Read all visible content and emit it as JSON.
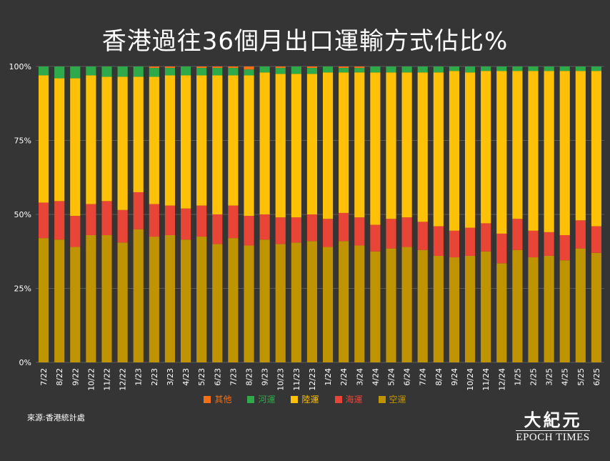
{
  "title": "香港過往36個月出口運輸方式佔比%",
  "source_note": "來源:香港統計處",
  "logo": {
    "cn": "大紀元",
    "en": "EPOCH TIMES"
  },
  "colors": {
    "其他": "#f46f16",
    "河運": "#2faa4a",
    "陸運": "#ffc107",
    "海運": "#e84536",
    "空運": "#c09300",
    "gridline": "#595959",
    "axis_text": "#ffffff"
  },
  "legend": [
    {
      "key": "其他",
      "label": "其他"
    },
    {
      "key": "河運",
      "label": "河運"
    },
    {
      "key": "陸運",
      "label": "陸運"
    },
    {
      "key": "海運",
      "label": "海運"
    },
    {
      "key": "空運",
      "label": "空運"
    }
  ],
  "chart_data": {
    "type": "bar",
    "stacked": true,
    "percent_stacked": true,
    "title": "香港過往36個月出口運輸方式佔比%",
    "xlabel": "",
    "ylabel": "",
    "ylim": [
      0,
      100
    ],
    "yticks": [
      "0%",
      "25%",
      "50%",
      "75%",
      "100%"
    ],
    "grid": true,
    "legend_position": "bottom",
    "categories": [
      "7/22",
      "8/22",
      "9/22",
      "10/22",
      "11/22",
      "12/22",
      "1/23",
      "2/23",
      "3/23",
      "4/23",
      "5/23",
      "6/23",
      "7/23",
      "8/23",
      "9/23",
      "10/23",
      "11/23",
      "12/23",
      "1/24",
      "2/24",
      "3/24",
      "4/24",
      "5/24",
      "6/24",
      "7/24",
      "8/24",
      "9/24",
      "10/24",
      "11/24",
      "12/24",
      "1/25",
      "2/25",
      "3/25",
      "4/25",
      "5/25",
      "6/25"
    ],
    "series": [
      {
        "name": "空運",
        "values": [
          42,
          41.5,
          39,
          43,
          43,
          40.5,
          45,
          42.5,
          43,
          41.5,
          42.5,
          40,
          42,
          39.5,
          41.5,
          40,
          40.5,
          41,
          39,
          41,
          39.5,
          37.5,
          38.5,
          39,
          38,
          36,
          35.5,
          36,
          37.5,
          33.5,
          38,
          35.5,
          36,
          34.5,
          38.5,
          37
        ]
      },
      {
        "name": "海運",
        "values": [
          12,
          13,
          10.5,
          10.5,
          11.5,
          11,
          12.5,
          11,
          10,
          10.5,
          10.5,
          10,
          11,
          10,
          8.5,
          9,
          8.5,
          9,
          9.5,
          9.5,
          9.5,
          9,
          10,
          10,
          9.5,
          10,
          9,
          9.5,
          9.5,
          10,
          10.5,
          9,
          8,
          8.5,
          9.5,
          9
        ]
      },
      {
        "name": "陸運",
        "values": [
          43,
          41.5,
          46.5,
          43.5,
          42,
          45,
          39,
          43,
          44,
          45,
          44,
          47,
          44,
          47.5,
          48,
          48.5,
          48.5,
          47.5,
          49.5,
          47.5,
          49,
          51.5,
          49.5,
          49,
          50.5,
          52,
          54,
          52.5,
          51.5,
          55,
          50,
          54,
          54.5,
          55.5,
          50.5,
          52.5
        ]
      },
      {
        "name": "河運",
        "values": [
          3,
          4,
          4,
          3,
          3.5,
          3.5,
          3.5,
          3,
          2.5,
          3,
          2.5,
          2.5,
          2.5,
          2,
          2,
          2,
          2.5,
          2,
          2,
          1.5,
          1.5,
          2,
          2,
          2,
          2,
          2,
          1.5,
          2,
          1.5,
          1.5,
          1.5,
          1.5,
          1.5,
          1.5,
          1.5,
          1.5
        ]
      },
      {
        "name": "其他",
        "values": [
          0,
          0,
          0,
          0,
          0,
          0,
          0,
          0.5,
          0.5,
          0,
          0.5,
          0.5,
          0.5,
          1,
          0,
          0.5,
          0,
          0.5,
          0,
          0.5,
          0.5,
          0,
          0,
          0,
          0,
          0,
          0,
          0,
          0,
          0,
          0,
          0,
          0,
          0,
          0,
          0
        ]
      }
    ]
  }
}
